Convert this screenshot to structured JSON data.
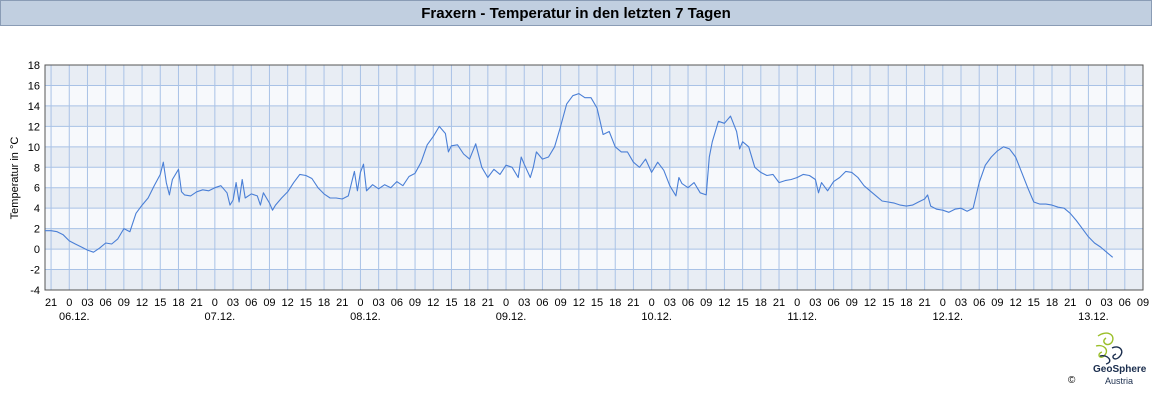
{
  "chart_data": {
    "type": "line",
    "title": "Fraxern - Temperatur in den letzten 7 Tagen",
    "ylabel": "Temperatur in °C",
    "xlabel": "",
    "ylim": [
      -4,
      18
    ],
    "yticks": [
      -4,
      -2,
      0,
      2,
      4,
      6,
      8,
      10,
      12,
      14,
      16,
      18
    ],
    "x_unit": "hours since 06.12. 00:00",
    "xlim": [
      -4,
      177
    ],
    "hour_ticks": [
      {
        "h": -3,
        "label": "21"
      },
      {
        "h": 0,
        "label": "0"
      },
      {
        "h": 3,
        "label": "03"
      },
      {
        "h": 6,
        "label": "06"
      },
      {
        "h": 9,
        "label": "09"
      },
      {
        "h": 12,
        "label": "12"
      },
      {
        "h": 15,
        "label": "15"
      },
      {
        "h": 18,
        "label": "18"
      },
      {
        "h": 21,
        "label": "21"
      },
      {
        "h": 24,
        "label": "0"
      },
      {
        "h": 27,
        "label": "03"
      },
      {
        "h": 30,
        "label": "06"
      },
      {
        "h": 33,
        "label": "09"
      },
      {
        "h": 36,
        "label": "12"
      },
      {
        "h": 39,
        "label": "15"
      },
      {
        "h": 42,
        "label": "18"
      },
      {
        "h": 45,
        "label": "21"
      },
      {
        "h": 48,
        "label": "0"
      },
      {
        "h": 51,
        "label": "03"
      },
      {
        "h": 54,
        "label": "06"
      },
      {
        "h": 57,
        "label": "09"
      },
      {
        "h": 60,
        "label": "12"
      },
      {
        "h": 63,
        "label": "15"
      },
      {
        "h": 66,
        "label": "18"
      },
      {
        "h": 69,
        "label": "21"
      },
      {
        "h": 72,
        "label": "0"
      },
      {
        "h": 75,
        "label": "03"
      },
      {
        "h": 78,
        "label": "06"
      },
      {
        "h": 81,
        "label": "09"
      },
      {
        "h": 84,
        "label": "12"
      },
      {
        "h": 87,
        "label": "15"
      },
      {
        "h": 90,
        "label": "18"
      },
      {
        "h": 93,
        "label": "21"
      },
      {
        "h": 96,
        "label": "0"
      },
      {
        "h": 99,
        "label": "03"
      },
      {
        "h": 102,
        "label": "06"
      },
      {
        "h": 105,
        "label": "09"
      },
      {
        "h": 108,
        "label": "12"
      },
      {
        "h": 111,
        "label": "15"
      },
      {
        "h": 114,
        "label": "18"
      },
      {
        "h": 117,
        "label": "21"
      },
      {
        "h": 120,
        "label": "0"
      },
      {
        "h": 123,
        "label": "03"
      },
      {
        "h": 126,
        "label": "06"
      },
      {
        "h": 129,
        "label": "09"
      },
      {
        "h": 132,
        "label": "12"
      },
      {
        "h": 135,
        "label": "15"
      },
      {
        "h": 138,
        "label": "18"
      },
      {
        "h": 141,
        "label": "21"
      },
      {
        "h": 144,
        "label": "0"
      },
      {
        "h": 147,
        "label": "03"
      },
      {
        "h": 150,
        "label": "06"
      },
      {
        "h": 153,
        "label": "09"
      },
      {
        "h": 156,
        "label": "12"
      },
      {
        "h": 159,
        "label": "15"
      },
      {
        "h": 162,
        "label": "18"
      },
      {
        "h": 165,
        "label": "21"
      },
      {
        "h": 168,
        "label": "0"
      },
      {
        "h": 171,
        "label": "03"
      },
      {
        "h": 174,
        "label": "06"
      },
      {
        "h": 177,
        "label": "09"
      }
    ],
    "date_labels": [
      {
        "h": 0,
        "label": "06.12."
      },
      {
        "h": 24,
        "label": "07.12."
      },
      {
        "h": 48,
        "label": "08.12."
      },
      {
        "h": 72,
        "label": "09.12."
      },
      {
        "h": 96,
        "label": "10.12."
      },
      {
        "h": 120,
        "label": "11.12."
      },
      {
        "h": 144,
        "label": "12.12."
      },
      {
        "h": 168,
        "label": "13.12."
      }
    ],
    "series": [
      {
        "color": "#4a7fd6",
        "points": [
          [
            -4,
            1.8
          ],
          [
            -3,
            1.8
          ],
          [
            -2,
            1.7
          ],
          [
            -1,
            1.4
          ],
          [
            0,
            0.8
          ],
          [
            1,
            0.5
          ],
          [
            2,
            0.2
          ],
          [
            3,
            -0.1
          ],
          [
            4,
            -0.3
          ],
          [
            5,
            0.1
          ],
          [
            6,
            0.6
          ],
          [
            7,
            0.5
          ],
          [
            8,
            1.0
          ],
          [
            9,
            2.0
          ],
          [
            10,
            1.7
          ],
          [
            11,
            3.5
          ],
          [
            12,
            4.3
          ],
          [
            13,
            5.0
          ],
          [
            14,
            6.2
          ],
          [
            15,
            7.3
          ],
          [
            15.5,
            8.5
          ],
          [
            16,
            6.5
          ],
          [
            16.5,
            5.3
          ],
          [
            17,
            6.8
          ],
          [
            18,
            7.8
          ],
          [
            18.5,
            5.6
          ],
          [
            19,
            5.3
          ],
          [
            20,
            5.2
          ],
          [
            21,
            5.6
          ],
          [
            22,
            5.8
          ],
          [
            23,
            5.7
          ],
          [
            24,
            6.0
          ],
          [
            25,
            6.2
          ],
          [
            26,
            5.5
          ],
          [
            26.5,
            4.3
          ],
          [
            27,
            4.8
          ],
          [
            27.5,
            6.5
          ],
          [
            28,
            4.6
          ],
          [
            28.5,
            6.8
          ],
          [
            29,
            5.0
          ],
          [
            30,
            5.4
          ],
          [
            31,
            5.2
          ],
          [
            31.5,
            4.3
          ],
          [
            32,
            5.5
          ],
          [
            33,
            4.5
          ],
          [
            33.5,
            3.8
          ],
          [
            34,
            4.3
          ],
          [
            35,
            5.0
          ],
          [
            36,
            5.6
          ],
          [
            37,
            6.5
          ],
          [
            38,
            7.3
          ],
          [
            39,
            7.2
          ],
          [
            40,
            6.9
          ],
          [
            41,
            6.0
          ],
          [
            42,
            5.4
          ],
          [
            43,
            5.0
          ],
          [
            44,
            5.0
          ],
          [
            45,
            4.9
          ],
          [
            46,
            5.2
          ],
          [
            47,
            7.6
          ],
          [
            47.5,
            5.7
          ],
          [
            48,
            7.5
          ],
          [
            48.5,
            8.3
          ],
          [
            49,
            5.7
          ],
          [
            50,
            6.3
          ],
          [
            51,
            5.9
          ],
          [
            52,
            6.3
          ],
          [
            53,
            6.0
          ],
          [
            54,
            6.6
          ],
          [
            55,
            6.2
          ],
          [
            56,
            7.1
          ],
          [
            57,
            7.4
          ],
          [
            58,
            8.5
          ],
          [
            59,
            10.2
          ],
          [
            60,
            11.0
          ],
          [
            61,
            12.0
          ],
          [
            62,
            11.3
          ],
          [
            62.5,
            9.5
          ],
          [
            63,
            10.1
          ],
          [
            64,
            10.2
          ],
          [
            65,
            9.3
          ],
          [
            66,
            8.8
          ],
          [
            67,
            10.3
          ],
          [
            68,
            8.0
          ],
          [
            69,
            7.0
          ],
          [
            70,
            7.8
          ],
          [
            71,
            7.3
          ],
          [
            72,
            8.2
          ],
          [
            73,
            8.0
          ],
          [
            74,
            7.0
          ],
          [
            74.5,
            9.0
          ],
          [
            75,
            8.3
          ],
          [
            76,
            7.0
          ],
          [
            76.5,
            8.0
          ],
          [
            77,
            9.5
          ],
          [
            78,
            8.8
          ],
          [
            79,
            9.0
          ],
          [
            80,
            10.0
          ],
          [
            81,
            12.0
          ],
          [
            82,
            14.2
          ],
          [
            83,
            15.0
          ],
          [
            84,
            15.2
          ],
          [
            85,
            14.8
          ],
          [
            86,
            14.8
          ],
          [
            87,
            13.8
          ],
          [
            87.5,
            12.5
          ],
          [
            88,
            11.2
          ],
          [
            89,
            11.5
          ],
          [
            90,
            10.0
          ],
          [
            91,
            9.5
          ],
          [
            92,
            9.5
          ],
          [
            93,
            8.5
          ],
          [
            94,
            8.0
          ],
          [
            95,
            8.8
          ],
          [
            96,
            7.5
          ],
          [
            97,
            8.5
          ],
          [
            98,
            7.7
          ],
          [
            99,
            6.2
          ],
          [
            100,
            5.2
          ],
          [
            100.5,
            7.0
          ],
          [
            101,
            6.4
          ],
          [
            102,
            6.0
          ],
          [
            103,
            6.5
          ],
          [
            104,
            5.5
          ],
          [
            105,
            5.3
          ],
          [
            105.5,
            9.0
          ],
          [
            106,
            10.5
          ],
          [
            107,
            12.5
          ],
          [
            108,
            12.3
          ],
          [
            109,
            13.0
          ],
          [
            110,
            11.5
          ],
          [
            110.5,
            9.8
          ],
          [
            111,
            10.5
          ],
          [
            112,
            10.0
          ],
          [
            113,
            8.0
          ],
          [
            114,
            7.5
          ],
          [
            115,
            7.2
          ],
          [
            116,
            7.3
          ],
          [
            117,
            6.5
          ],
          [
            118,
            6.7
          ],
          [
            119,
            6.8
          ],
          [
            120,
            7.0
          ],
          [
            121,
            7.3
          ],
          [
            122,
            7.2
          ],
          [
            123,
            6.8
          ],
          [
            123.5,
            5.5
          ],
          [
            124,
            6.5
          ],
          [
            125,
            5.7
          ],
          [
            126,
            6.6
          ],
          [
            127,
            7.0
          ],
          [
            128,
            7.6
          ],
          [
            129,
            7.5
          ],
          [
            130,
            7.0
          ],
          [
            131,
            6.2
          ],
          [
            132,
            5.7
          ],
          [
            133,
            5.2
          ],
          [
            134,
            4.7
          ],
          [
            135,
            4.6
          ],
          [
            136,
            4.5
          ],
          [
            137,
            4.3
          ],
          [
            138,
            4.2
          ],
          [
            139,
            4.3
          ],
          [
            140,
            4.6
          ],
          [
            141,
            4.9
          ],
          [
            141.5,
            5.3
          ],
          [
            142,
            4.2
          ],
          [
            143,
            3.9
          ],
          [
            144,
            3.8
          ],
          [
            145,
            3.6
          ],
          [
            146,
            3.9
          ],
          [
            147,
            4.0
          ],
          [
            148,
            3.7
          ],
          [
            149,
            4.0
          ],
          [
            150,
            6.5
          ],
          [
            151,
            8.2
          ],
          [
            152,
            9.0
          ],
          [
            153,
            9.6
          ],
          [
            154,
            10.0
          ],
          [
            155,
            9.8
          ],
          [
            156,
            9.0
          ],
          [
            157,
            7.5
          ],
          [
            158,
            6.0
          ],
          [
            159,
            4.6
          ],
          [
            160,
            4.4
          ],
          [
            161,
            4.4
          ],
          [
            162,
            4.3
          ],
          [
            163,
            4.1
          ],
          [
            164,
            4.0
          ],
          [
            165,
            3.5
          ],
          [
            166,
            2.8
          ],
          [
            167,
            2.0
          ],
          [
            168,
            1.2
          ],
          [
            169,
            0.6
          ],
          [
            170,
            0.2
          ],
          [
            171,
            -0.3
          ],
          [
            172,
            -0.8
          ]
        ]
      }
    ]
  },
  "branding": {
    "name": "GeoSphere",
    "sub": "Austria",
    "copyright": "©"
  }
}
